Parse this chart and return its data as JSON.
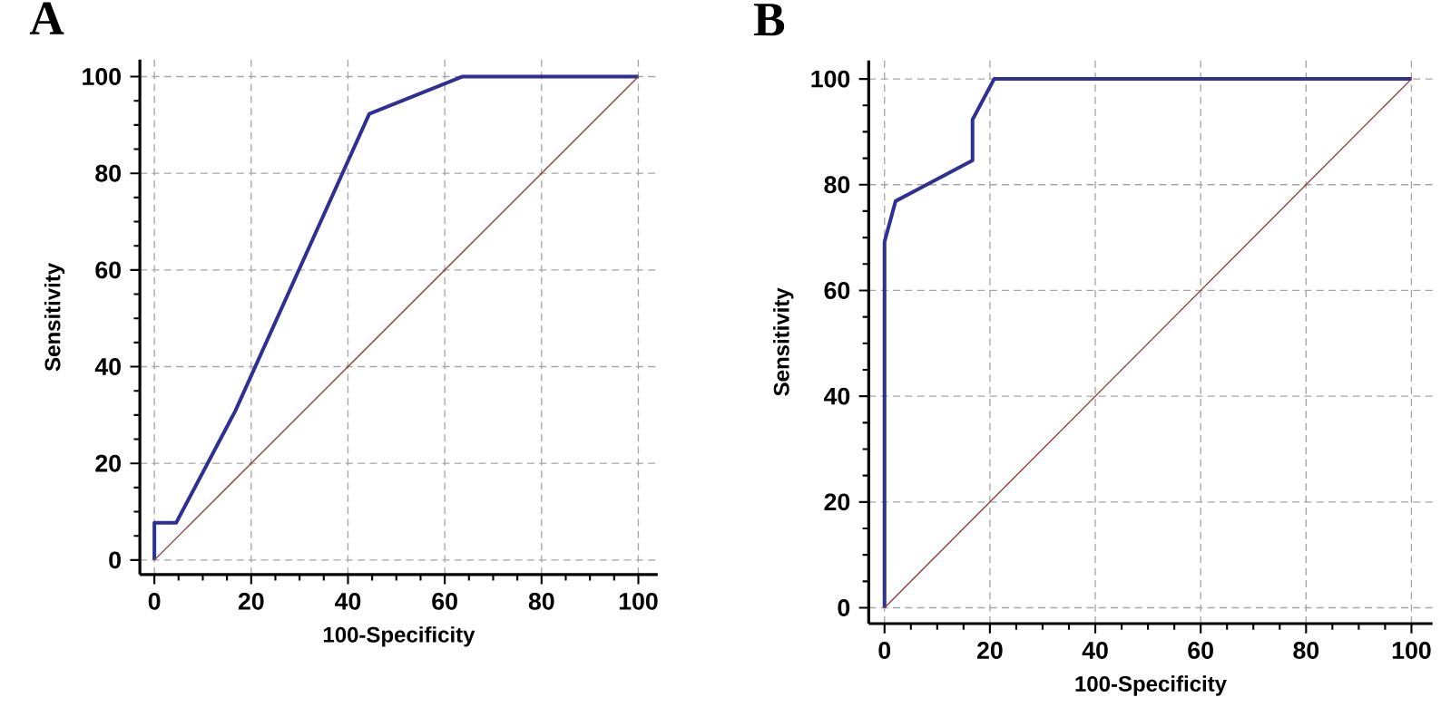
{
  "chart_data": [
    {
      "type": "line",
      "title": "A",
      "xlabel": "100-Specificity",
      "ylabel": "Sensitivity",
      "xlim": [
        -3,
        104
      ],
      "ylim": [
        -3,
        103.5
      ],
      "xticks": [
        0,
        20,
        40,
        60,
        80,
        100
      ],
      "yticks": [
        0,
        20,
        40,
        60,
        80,
        100
      ],
      "grid": true,
      "series": [
        {
          "color": "#2e3192",
          "x": [
            0,
            0,
            4.5,
            16.7,
            44.4,
            63.6,
            100
          ],
          "values": [
            0,
            7.7,
            7.7,
            30.8,
            92.3,
            100,
            100
          ]
        },
        {
          "color": "#8b3a3a",
          "x": [
            0,
            100
          ],
          "values": [
            0,
            100
          ]
        }
      ]
    },
    {
      "type": "line",
      "title": "B",
      "xlabel": "100-Specificity",
      "ylabel": "Sensitivity",
      "xlim": [
        -3,
        104
      ],
      "ylim": [
        -3,
        103.5
      ],
      "xticks": [
        0,
        20,
        40,
        60,
        80,
        100
      ],
      "yticks": [
        0,
        20,
        40,
        60,
        80,
        100
      ],
      "grid": true,
      "series": [
        {
          "color": "#2e3192",
          "x": [
            0,
            0,
            2.1,
            16.7,
            16.7,
            20.8,
            100
          ],
          "values": [
            0,
            69.2,
            76.9,
            84.6,
            92.3,
            100,
            100
          ]
        },
        {
          "color": "#8b3a3a",
          "x": [
            0,
            100
          ],
          "values": [
            0,
            100
          ]
        }
      ]
    }
  ]
}
